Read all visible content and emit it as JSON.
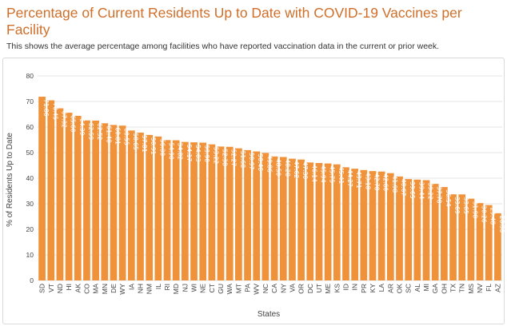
{
  "title": "Percentage of Current Residents Up to Date with COVID-19 Vaccines per Facility",
  "subtitle": "This shows the average percentage among facilities who have reported vaccination data in the current or prior week.",
  "colors": {
    "bar": "#f0923a",
    "title": "#cf6f2a",
    "grid": "#e3e3e3"
  },
  "chart_data": {
    "type": "bar",
    "xlabel": "States",
    "ylabel": "% of Residents Up to Date",
    "ylim": [
      0,
      80
    ],
    "yticks": [
      0,
      10,
      20,
      30,
      40,
      50,
      60,
      70,
      80
    ],
    "grid": true,
    "categories": [
      "SD",
      "VT",
      "ND",
      "HI",
      "AK",
      "CO",
      "MA",
      "MN",
      "DE",
      "WY",
      "IA",
      "NH",
      "NM",
      "IL",
      "RI",
      "MD",
      "NJ",
      "WI",
      "NE",
      "CT",
      "GU",
      "WA",
      "MT",
      "PA",
      "WV",
      "NC",
      "CA",
      "NY",
      "VA",
      "OR",
      "DC",
      "UT",
      "ME",
      "KS",
      "ID",
      "IN",
      "PR",
      "KY",
      "LA",
      "AR",
      "OK",
      "SC",
      "AL",
      "MI",
      "GA",
      "OH",
      "TX",
      "TN",
      "MS",
      "NV",
      "FL",
      "AZ"
    ],
    "values": [
      71.86,
      70.45,
      67.32,
      65.6,
      64.39,
      62.59,
      62.52,
      61.48,
      60.81,
      60.55,
      58.65,
      57.81,
      56.91,
      56.3,
      54.9,
      54.82,
      54.17,
      54.03,
      53.9,
      53.22,
      52.38,
      52.27,
      51.68,
      50.97,
      50.46,
      49.86,
      48.5,
      48.28,
      47.62,
      47.3,
      46.14,
      45.94,
      45.75,
      45.41,
      44.27,
      43.71,
      43.18,
      42.78,
      42.6,
      41.98,
      40.67,
      39.65,
      39.44,
      39.22,
      37.78,
      36.54,
      33.69,
      33.65,
      31.98,
      30.26,
      29.48,
      26.3
    ],
    "labels": [
      "71.86",
      "70.45",
      "67.32",
      "65.60",
      "64.39",
      "62.59",
      "62.52",
      "61.48",
      "60.81",
      "60.55",
      "58.65",
      "57.81",
      "56.91",
      "56.30",
      "54.90",
      "54.82",
      "54.17",
      "54.03",
      "53.90",
      "53.22",
      "52.38",
      "52.27",
      "51.68",
      "50.97",
      "50.46",
      "49.86",
      "48.50",
      "48.28",
      "47.62",
      "47.30",
      "46.14",
      "45.94",
      "45.75",
      "45.41",
      "44.27",
      "43.71",
      "43.18",
      "42.78",
      "42.60",
      "41.98",
      "40.67",
      "39.65",
      "39.44",
      "39.22",
      "37.78",
      "36.54",
      "33.69",
      "33.65",
      "31.98",
      "30.26",
      "29.48",
      "26.30"
    ]
  }
}
